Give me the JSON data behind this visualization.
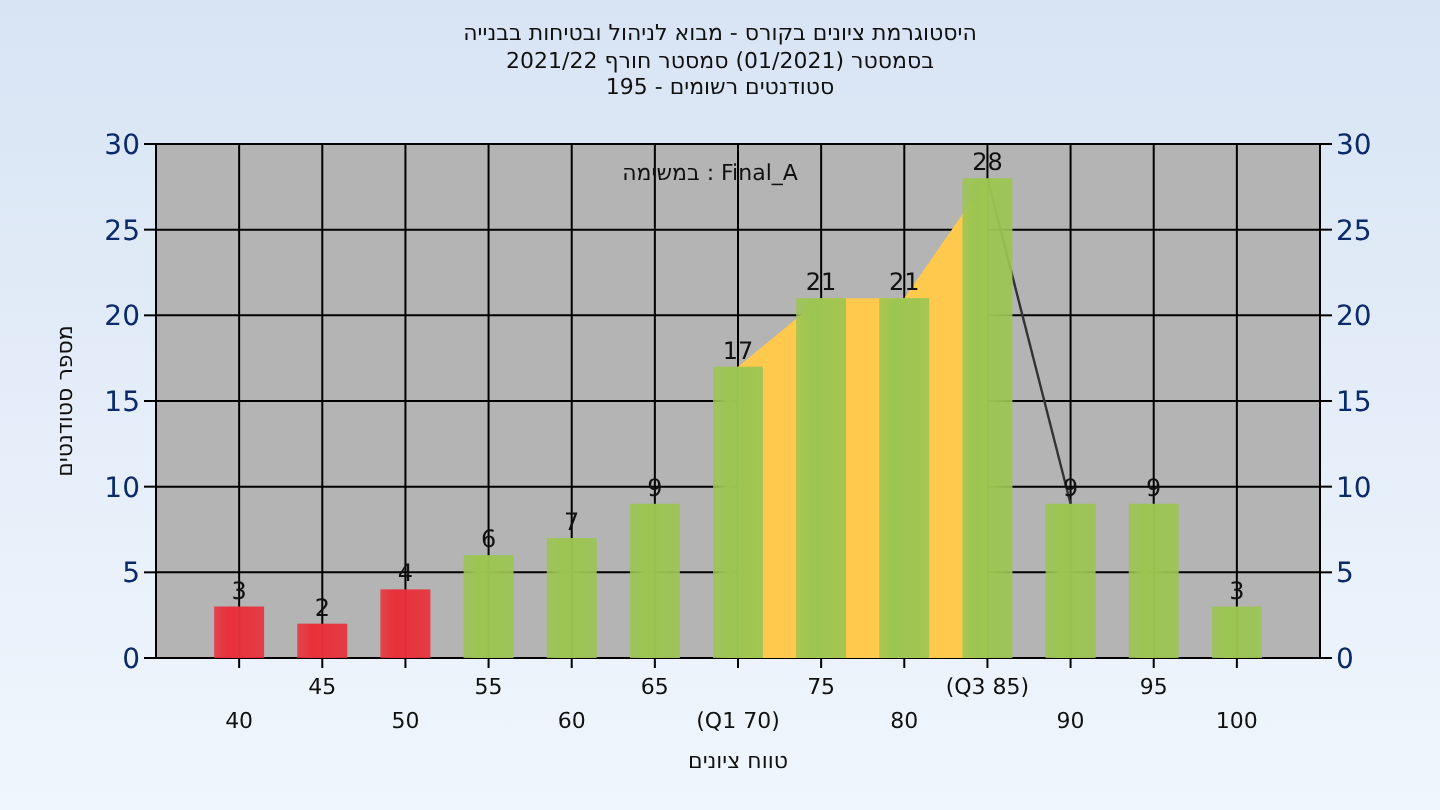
{
  "chart_data": {
    "type": "bar",
    "title": "היסטוגרמת ציונים בקורס - מבוא לניהול ובטיחות בבנייה",
    "subtitle": "בסמסטר  (01/2021)  סמסטר חורף 2021/22\nסטודנטים רשומים - 195",
    "xlabel": "טווח ציונים",
    "ylabel": "מספר סטודנטים",
    "annotations": [
      "במשימה : Final_A"
    ],
    "categories": [
      "40",
      "45",
      "50",
      "55",
      "60",
      "65",
      "(Q1 70)",
      "75",
      "80",
      "(Q3 85)",
      "90",
      "95",
      "100"
    ],
    "series": [
      {
        "type": "area",
        "color": "#ffc94d",
        "values": [
          null,
          null,
          null,
          null,
          null,
          null,
          17,
          21,
          21,
          28,
          null,
          null,
          null
        ]
      },
      {
        "type": "line",
        "color": "#333333",
        "values": [
          null,
          null,
          null,
          null,
          null,
          null,
          null,
          null,
          null,
          28,
          9,
          null,
          null
        ]
      },
      {
        "colors": [
          "#e8303a",
          "#e8303a",
          "#e8303a",
          "#9cc552",
          "#9cc552",
          "#9cc552",
          "#9cc552",
          "#9cc552",
          "#9cc552",
          "#9cc552",
          "#9cc552",
          "#9cc552",
          "#9cc552"
        ],
        "values": [
          3,
          2,
          4,
          6,
          7,
          9,
          17,
          21,
          21,
          28,
          9,
          9,
          3
        ],
        "value_labels": [
          "3",
          "2",
          "4",
          "6",
          "7",
          "9",
          "17",
          "21",
          "21",
          "28",
          "9",
          "9",
          "3"
        ]
      }
    ],
    "ylim": [
      0,
      30
    ],
    "yticks": [
      0,
      5,
      10,
      15,
      20,
      25,
      30
    ],
    "y2lim": [
      0,
      30
    ],
    "y2ticks": [
      0,
      5,
      10,
      15,
      20,
      25,
      30
    ],
    "grid": true
  }
}
